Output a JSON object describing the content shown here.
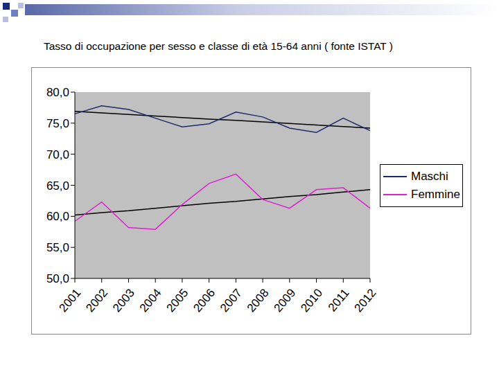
{
  "chart_data": {
    "type": "line",
    "title": "Tasso di occupazione per sesso e classe di età 15-64 anni ( fonte ISTAT )",
    "categories": [
      "2001",
      "2002",
      "2003",
      "2004",
      "2005",
      "2006",
      "2007",
      "2008",
      "2009",
      "2010",
      "2011",
      "2012"
    ],
    "series": [
      {
        "name": "Maschi",
        "color": "#1f2a6b",
        "values": [
          76.5,
          77.8,
          77.2,
          75.8,
          74.4,
          74.9,
          76.8,
          76.0,
          74.2,
          73.5,
          75.8,
          73.8
        ],
        "trend": [
          76.9,
          76.65,
          76.4,
          76.15,
          75.9,
          75.65,
          75.45,
          75.2,
          74.95,
          74.7,
          74.45,
          74.2
        ]
      },
      {
        "name": "Femmine",
        "color": "#e020d0",
        "values": [
          59.2,
          62.3,
          58.2,
          57.9,
          61.9,
          65.3,
          66.8,
          62.7,
          61.3,
          64.3,
          64.6,
          61.3
        ],
        "trend": [
          60.2,
          60.6,
          60.9,
          61.3,
          61.7,
          62.1,
          62.4,
          62.8,
          63.2,
          63.5,
          63.9,
          64.3
        ]
      }
    ],
    "ylim": [
      50,
      80
    ],
    "yticks": [
      {
        "value": 50,
        "label": "50,0"
      },
      {
        "value": 55,
        "label": "55,0"
      },
      {
        "value": 60,
        "label": "60,0"
      },
      {
        "value": 65,
        "label": "65,0"
      },
      {
        "value": 70,
        "label": "70,0"
      },
      {
        "value": 75,
        "label": "75,0"
      },
      {
        "value": 80,
        "label": "80,0"
      }
    ],
    "grid": false,
    "legend": "right"
  }
}
